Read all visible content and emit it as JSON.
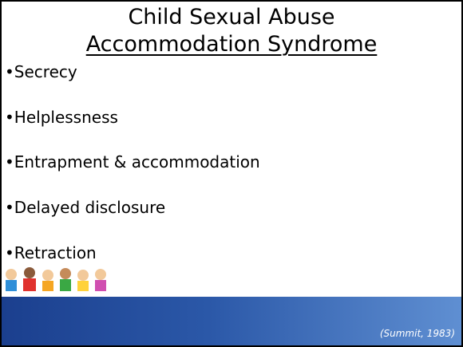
{
  "title": {
    "line1": "Child Sexual Abuse",
    "line2": "Accommodation Syndrome"
  },
  "bullets": [
    "Secrecy",
    "Helplessness",
    "Entrapment & accommodation",
    "Delayed disclosure",
    "Retraction"
  ],
  "citation": "(Summit, 1983)"
}
